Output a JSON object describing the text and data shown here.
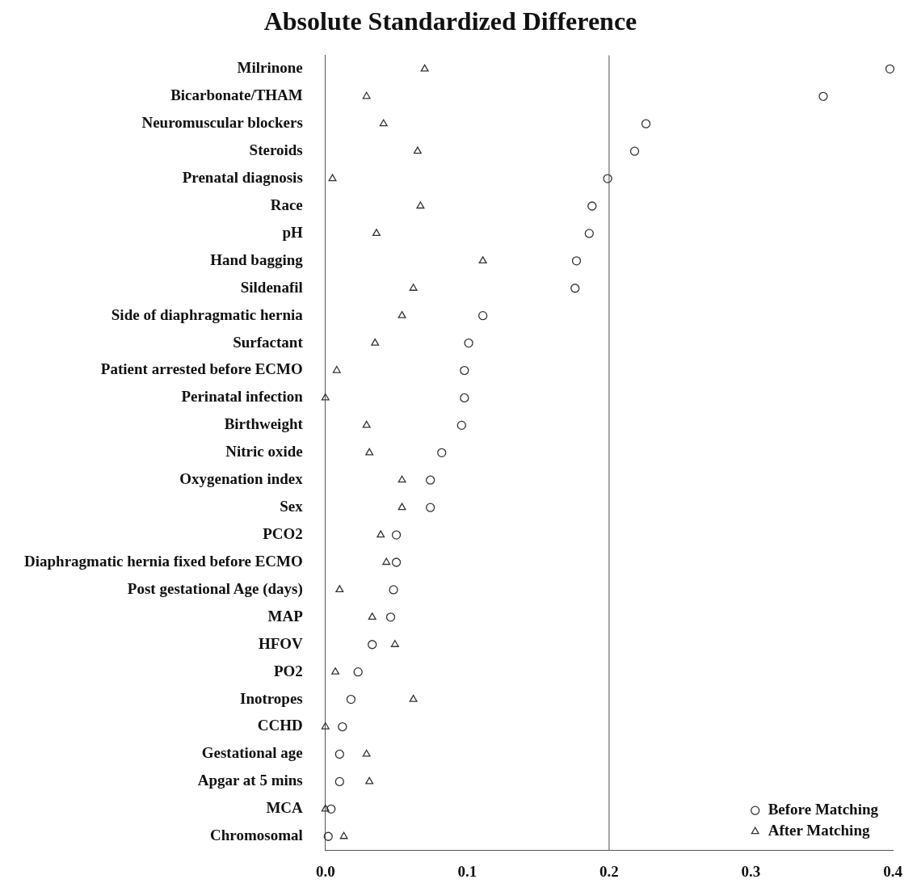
{
  "chart_data": {
    "type": "scatter",
    "title": "Absolute Standardized Difference",
    "orientation": "horizontal",
    "categories": [
      "Milrinone",
      "Bicarbonate/THAM",
      "Neuromuscular blockers",
      "Steroids",
      "Prenatal diagnosis",
      "Race",
      "pH",
      "Hand bagging",
      "Sildenafil",
      "Side of diaphragmatic hernia",
      "Surfactant",
      "Patient arrested before ECMO",
      "Perinatal infection",
      "Birthweight",
      "Nitric oxide",
      "Oxygenation index",
      "Sex",
      "PCO2",
      "Diaphragmatic hernia fixed before ECMO",
      "Post gestational Age (days)",
      "MAP",
      "HFOV",
      "PO2",
      "Inotropes",
      "CCHD",
      "Gestational age",
      "Apgar at 5 mins",
      "MCA",
      "Chromosomal"
    ],
    "series": [
      {
        "name": "Before Matching",
        "color": "#333333",
        "marker": "circle",
        "values": [
          0.398,
          0.351,
          0.226,
          0.218,
          0.199,
          0.188,
          0.186,
          0.177,
          0.176,
          0.111,
          0.101,
          0.098,
          0.098,
          0.096,
          0.082,
          0.074,
          0.074,
          0.05,
          0.05,
          0.048,
          0.046,
          0.033,
          0.023,
          0.018,
          0.012,
          0.01,
          0.01,
          0.004,
          0.002
        ]
      },
      {
        "name": "After Matching",
        "color": "#333333",
        "marker": "triangle",
        "values": [
          0.07,
          0.029,
          0.041,
          0.065,
          0.005,
          0.067,
          0.036,
          0.111,
          0.062,
          0.054,
          0.035,
          0.008,
          0,
          0.029,
          0.031,
          0.054,
          0.054,
          0.039,
          0.043,
          0.01,
          0.033,
          0.049,
          0.007,
          0.062,
          0,
          0.029,
          0.031,
          0,
          0.013
        ]
      }
    ],
    "xlim": [
      0,
      0.4
    ],
    "xticks": [
      {
        "value": 0,
        "label": "0.0"
      },
      0.1,
      0.2,
      0.3,
      0.4
    ],
    "ref_lines": [
      {
        "axis": "x",
        "value": 0.2,
        "color": "#888888"
      }
    ],
    "grid": false,
    "legend": "bottom right"
  }
}
